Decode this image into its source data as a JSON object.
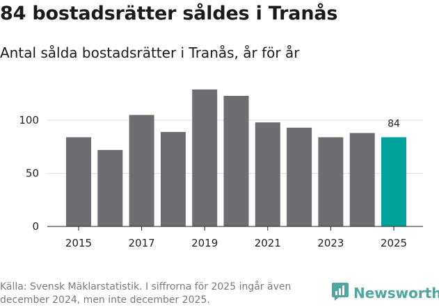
{
  "title": "84 bostadsrätter såldes i Tranås",
  "subtitle": "Antal sålda bostadsrätter i Tranås, år för år",
  "chart_data": {
    "type": "bar",
    "categories": [
      "2015",
      "2016",
      "2017",
      "2018",
      "2019",
      "2020",
      "2021",
      "2022",
      "2023",
      "2024",
      "2025"
    ],
    "values": [
      84,
      72,
      105,
      89,
      129,
      123,
      98,
      93,
      84,
      88,
      84
    ],
    "x_tick_labels": [
      "2015",
      "2017",
      "2019",
      "2021",
      "2023",
      "2025"
    ],
    "y_ticks": [
      0,
      50,
      100
    ],
    "ylim": [
      0,
      140
    ],
    "highlight_index": 10,
    "highlight_label": "84",
    "colors": {
      "bar": "#6e6d72",
      "highlight": "#00a39b",
      "grid": "#dddddd"
    },
    "xlabel": "",
    "ylabel": ""
  },
  "footer": {
    "source": "Källa: Svensk Mäklarstatistik. I siffrorna för 2025 ingår även december 2024, men inte december 2025.",
    "brand": "Newsworthy"
  }
}
